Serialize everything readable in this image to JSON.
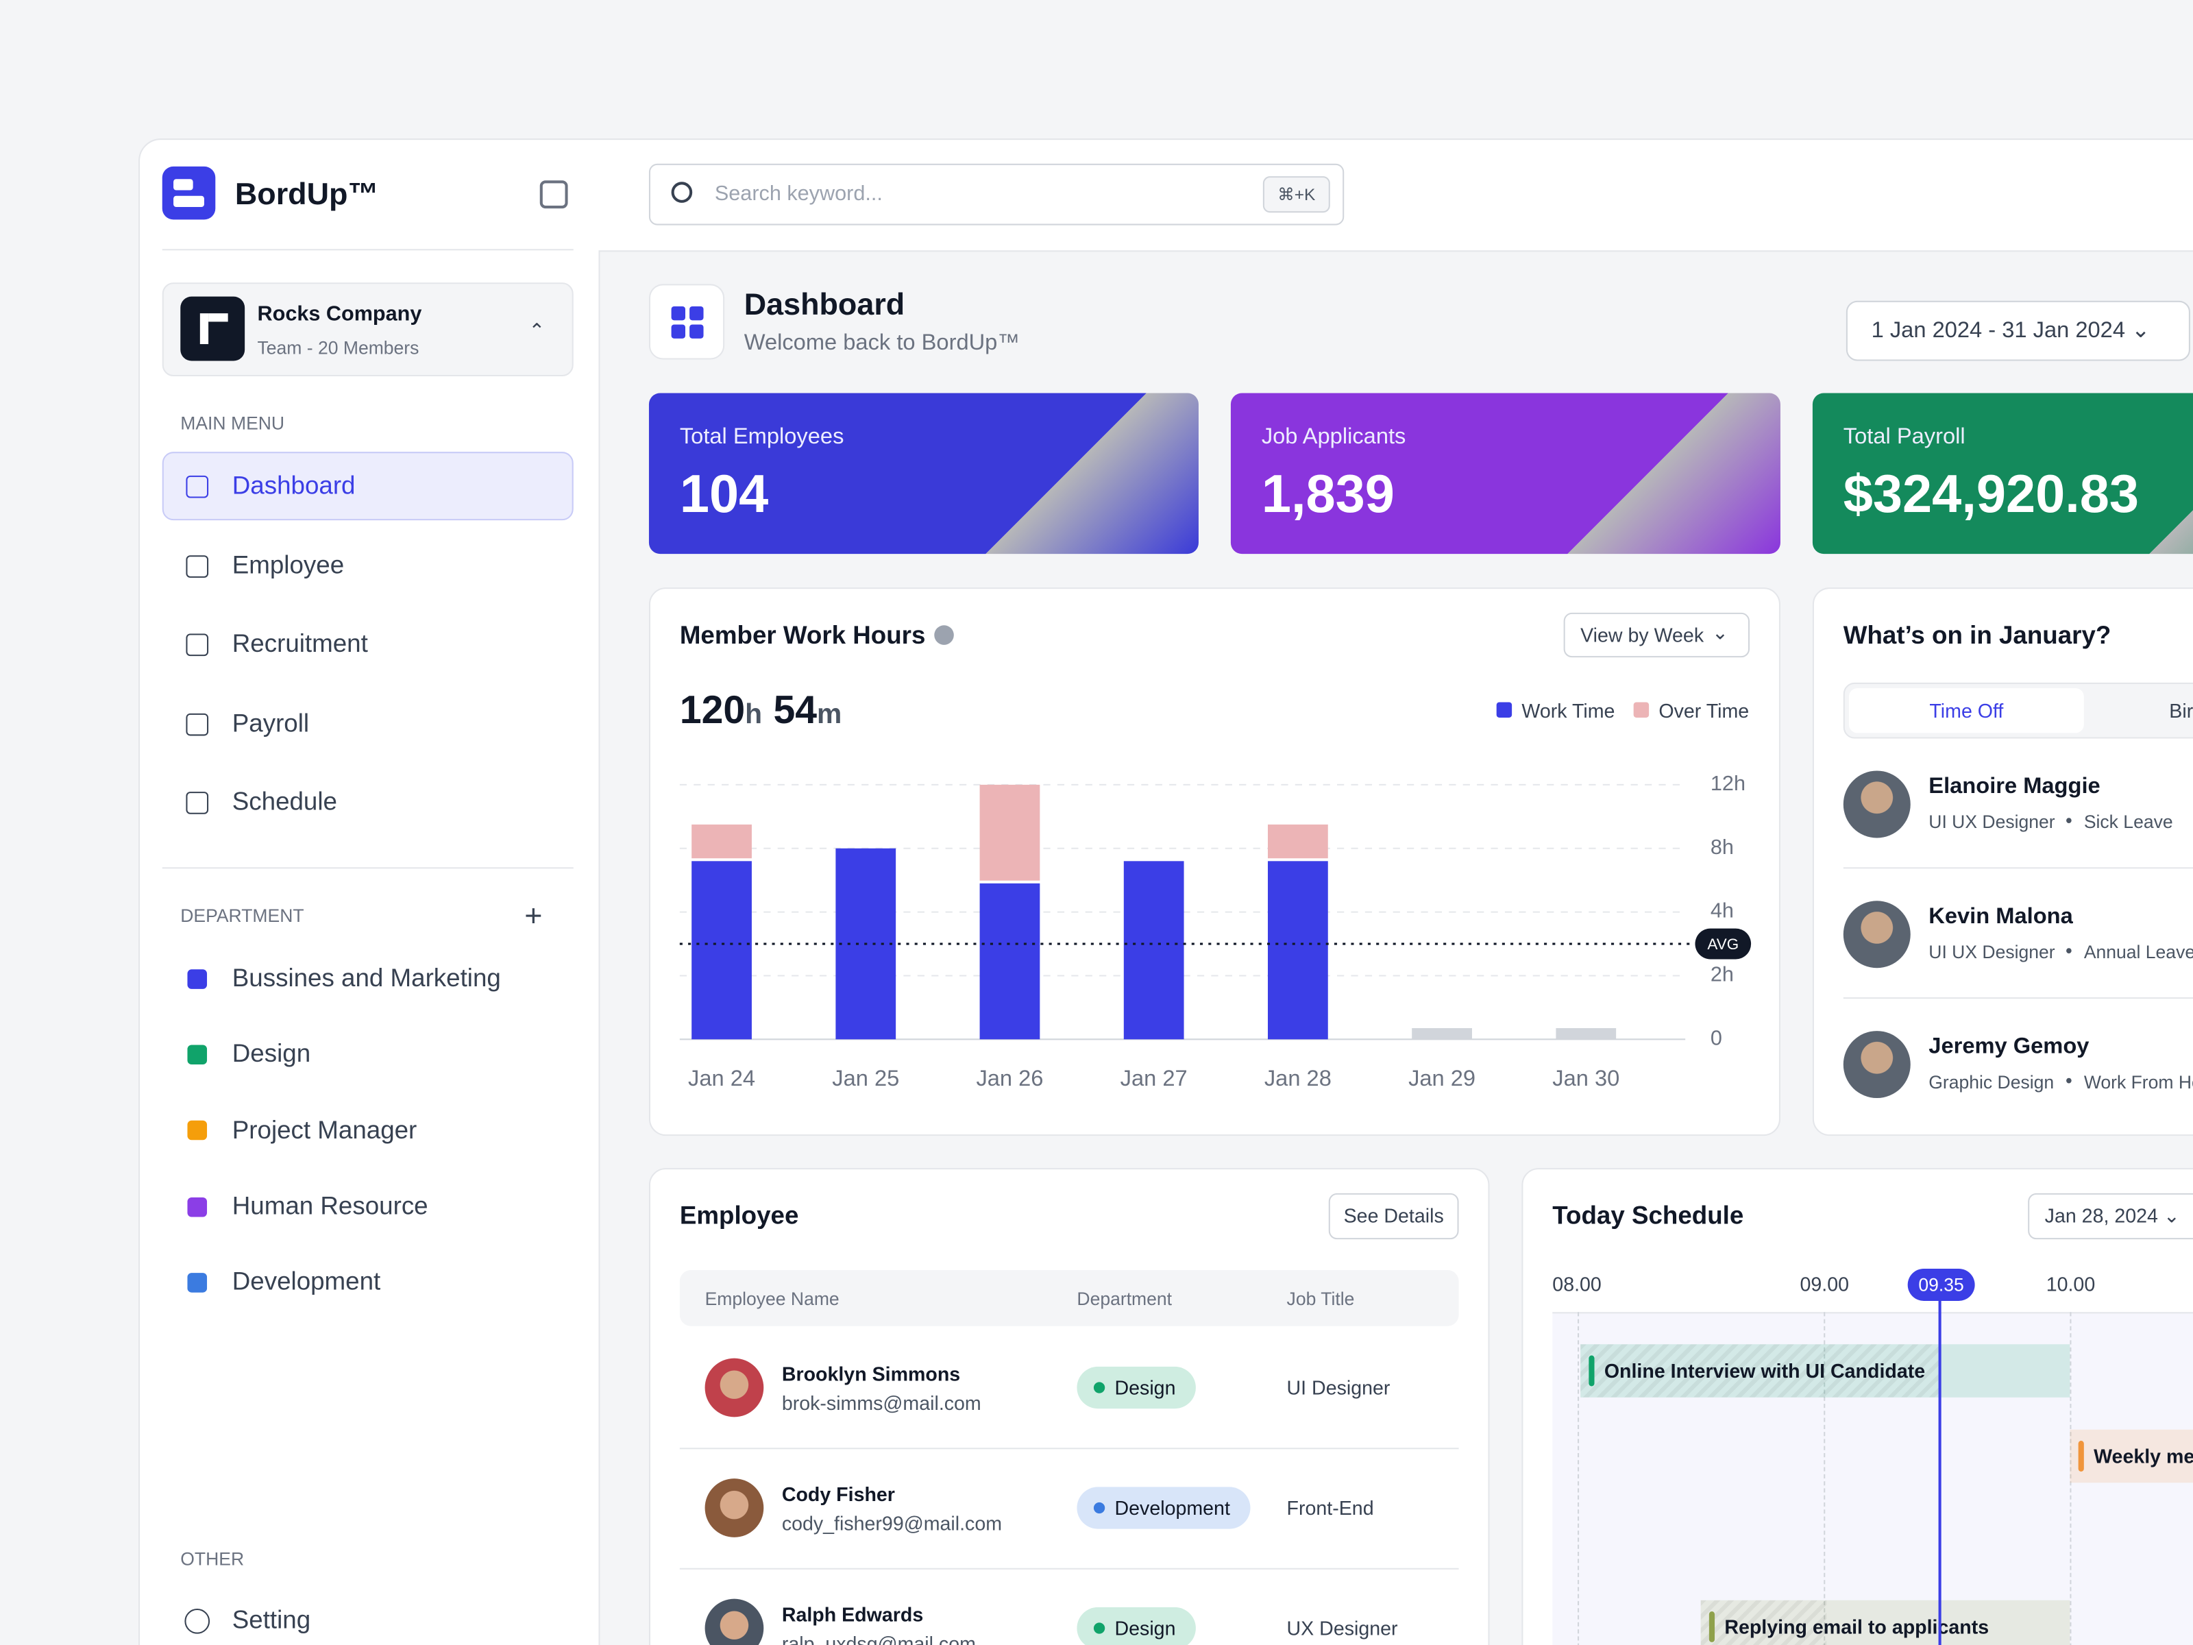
{
  "sidebar": {
    "brand": "BordUp™",
    "company": {
      "name": "Rocks Company",
      "team": "Team - 20 Members"
    },
    "main_menu_label": "MAIN MENU",
    "menu": [
      "Dashboard",
      "Employee",
      "Recruitment",
      "Payroll",
      "Schedule"
    ],
    "department_label": "DEPARTMENT",
    "departments": [
      {
        "name": "Bussines and Marketing",
        "color": "#3b3ee6"
      },
      {
        "name": "Design",
        "color": "#10a36a"
      },
      {
        "name": "Project Manager",
        "color": "#f59e0b"
      },
      {
        "name": "Human Resource",
        "color": "#8b3ee6"
      },
      {
        "name": "Development",
        "color": "#3b7be0"
      }
    ],
    "other_label": "OTHER",
    "other": [
      "Setting"
    ]
  },
  "search": {
    "placeholder": "Search keyword...",
    "shortcut": "⌘+K"
  },
  "header": {
    "title": "Dashboard",
    "subtitle": "Welcome back to BordUp™",
    "date_range": "1 Jan 2024 - 31 Jan 2024"
  },
  "stats": [
    {
      "label": "Total Employees",
      "value": "104",
      "color": "#3a3ad8"
    },
    {
      "label": "Job Applicants",
      "value": "1,839",
      "color": "#8a35dd"
    },
    {
      "label": "Total Payroll",
      "value": "$324,920.83",
      "color": "#148a5c"
    }
  ],
  "chart_data": {
    "type": "bar",
    "title": "Member Work Hours",
    "view": "View by Week",
    "total": {
      "hours": "120",
      "hours_unit": "h",
      "minutes": "54",
      "minutes_unit": "m"
    },
    "categories": [
      "Jan 24",
      "Jan 25",
      "Jan 26",
      "Jan 27",
      "Jan 28",
      "Jan 29",
      "Jan 30"
    ],
    "series": [
      {
        "name": "Work Time",
        "color": "#3b3ee6",
        "values": [
          7.2,
          8,
          5.8,
          7.2,
          7.2,
          null,
          null
        ]
      },
      {
        "name": "Over Time",
        "color": "#ecb4b6",
        "values": [
          2.3,
          0,
          6.2,
          0,
          2.3,
          null,
          null
        ]
      }
    ],
    "stacked": true,
    "ylim": [
      0,
      12
    ],
    "yticks": [
      0,
      {
        "value": 2,
        "label": "2h"
      },
      {
        "value": 4,
        "label": "4h"
      },
      {
        "value": 8,
        "label": "8h"
      },
      {
        "value": 12,
        "label": "12h"
      }
    ],
    "avg": {
      "value": 3,
      "label": "AVG"
    },
    "grid": true
  },
  "events": {
    "title": "What’s on in January?",
    "tabs": [
      "Time Off",
      "Birthday"
    ],
    "people": [
      {
        "name": "Elanoire Maggie",
        "role": "UI UX Designer",
        "leave": "Sick Leave"
      },
      {
        "name": "Kevin Malona",
        "role": "UI UX Designer",
        "leave": "Annual Leave"
      },
      {
        "name": "Jeremy Gemoy",
        "role": "Graphic Design",
        "leave": "Work From Home"
      }
    ]
  },
  "employees": {
    "title": "Employee",
    "button": "See Details",
    "headers": [
      "Employee Name",
      "Department",
      "Job Title"
    ],
    "rows": [
      {
        "name": "Brooklyn Simmons",
        "email": "brok-simms@mail.com",
        "department": "Design",
        "color": "#10a36a",
        "job": "UI Designer"
      },
      {
        "name": "Cody Fisher",
        "email": "cody_fisher99@mail.com",
        "department": "Development",
        "color": "#3b7be0",
        "job": "Front-End"
      },
      {
        "name": "Ralph Edwards",
        "email": "ralp_uxdsg@mail.com",
        "department": "Design",
        "color": "#10a36a",
        "job": "UX Designer"
      }
    ]
  },
  "schedule": {
    "title": "Today Schedule",
    "date": "Jan 28, 2024",
    "times": [
      "08.00",
      "09.00",
      "10.00"
    ],
    "now": "09.35",
    "items": [
      {
        "title": "Online Interview with UI Candidate",
        "color": "#10a36a"
      },
      {
        "title": "Weekly meeting",
        "color": "#f0953b"
      },
      {
        "title": "Replying email to applicants",
        "color": "#8fa14b"
      }
    ]
  }
}
